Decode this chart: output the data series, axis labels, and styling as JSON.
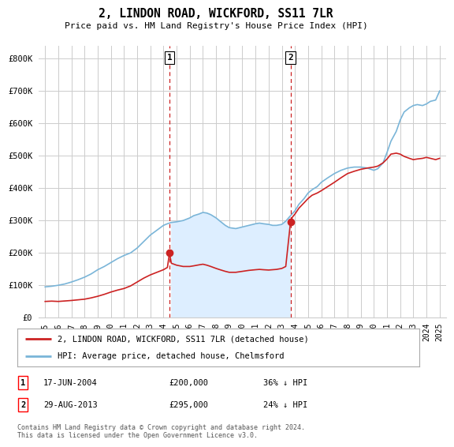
{
  "title": "2, LINDON ROAD, WICKFORD, SS11 7LR",
  "subtitle": "Price paid vs. HM Land Registry's House Price Index (HPI)",
  "hpi_color": "#7ab5d8",
  "red_color": "#cc2222",
  "vline_color": "#cc2222",
  "grid_color": "#cccccc",
  "fill_color": "#ddeeff",
  "bg_color": "#ffffff",
  "legend_label_red": "2, LINDON ROAD, WICKFORD, SS11 7LR (detached house)",
  "legend_label_blue": "HPI: Average price, detached house, Chelmsford",
  "footnote": "Contains HM Land Registry data © Crown copyright and database right 2024.\nThis data is licensed under the Open Government Licence v3.0.",
  "ylabel_ticks": [
    "£0",
    "£100K",
    "£200K",
    "£300K",
    "£400K",
    "£500K",
    "£600K",
    "£700K",
    "£800K"
  ],
  "ytick_vals": [
    0,
    100000,
    200000,
    300000,
    400000,
    500000,
    600000,
    700000,
    800000
  ],
  "xlim": [
    1994.5,
    2025.5
  ],
  "ylim": [
    0,
    840000
  ],
  "point1_x": 2004.46,
  "point1_y": 200000,
  "point2_x": 2013.66,
  "point2_y": 295000,
  "vline1_x": 2004.46,
  "vline2_x": 2013.66,
  "xtick_years": [
    1995,
    1996,
    1997,
    1998,
    1999,
    2000,
    2001,
    2002,
    2003,
    2004,
    2005,
    2006,
    2007,
    2008,
    2009,
    2010,
    2011,
    2012,
    2013,
    2014,
    2015,
    2016,
    2017,
    2018,
    2019,
    2020,
    2021,
    2022,
    2023,
    2024,
    2025
  ]
}
